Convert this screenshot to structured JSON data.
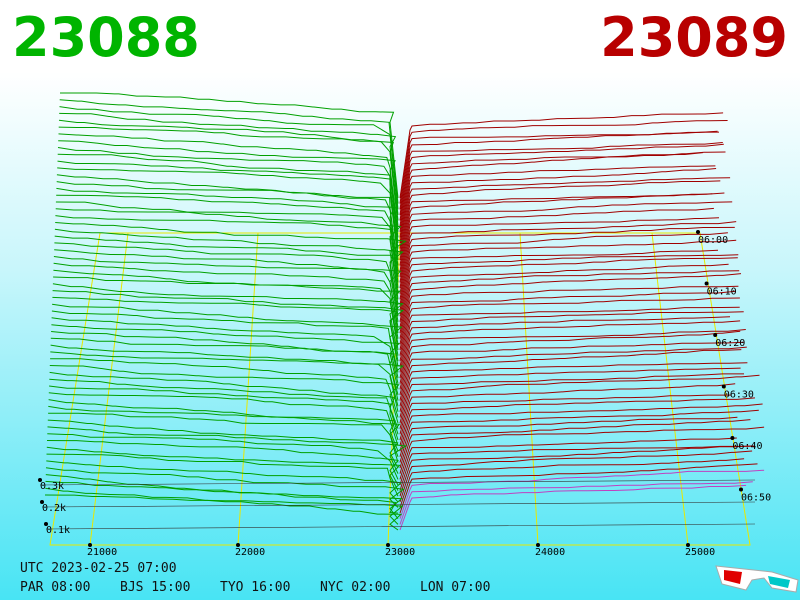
{
  "bid": "23088",
  "ask": "23089",
  "price_axis": [
    "21000",
    "22000",
    "23000",
    "24000",
    "25000"
  ],
  "size_axis": [
    "0.3k",
    "0.2k",
    "0.1k"
  ],
  "time_axis": [
    "06:00",
    "06:10",
    "06:20",
    "06:30",
    "06:40",
    "06:50"
  ],
  "footer": {
    "utc": "UTC 2023-02-25 07:00",
    "clocks": [
      "PAR 08:00",
      "BJS 15:00",
      "TYO 16:00",
      "NYC 02:00",
      "LON 07:00"
    ]
  }
}
